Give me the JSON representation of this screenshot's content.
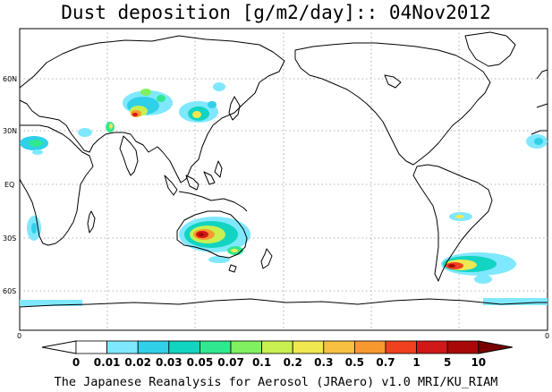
{
  "title": "Dust deposition [g/m2/day]:: 04Nov2012",
  "credit": "The Japanese Reanalysis for Aerosol (JRAero) v1.0 MRI/KU_RIAM",
  "lat_labels": [
    "60N",
    "30N",
    "EQ",
    "30S",
    "60S"
  ],
  "edge_labels": {
    "left": "0",
    "right": "0"
  },
  "colorbar": {
    "levels": [
      "0",
      "0.01",
      "0.02",
      "0.03",
      "0.05",
      "0.07",
      "0.1",
      "0.2",
      "0.3",
      "0.5",
      "0.7",
      "1",
      "5",
      "10"
    ],
    "colors": [
      "#ffffff",
      "#ffffff",
      "#7fe8ff",
      "#2fd0e8",
      "#12d4c0",
      "#30e890",
      "#80f060",
      "#c8f050",
      "#f0e850",
      "#f8c040",
      "#f89830",
      "#f04020",
      "#d01818",
      "#a80808",
      "#780000"
    ]
  },
  "land_color": "#ffffff",
  "coast_color": "#000000",
  "grid_color": "#9a9a9a"
}
